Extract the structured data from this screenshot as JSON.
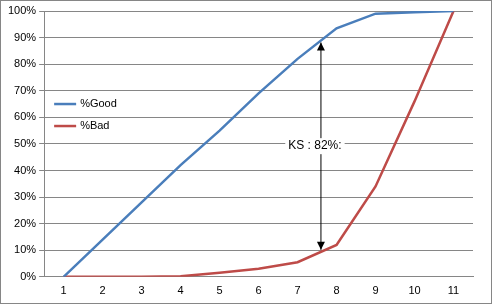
{
  "chart_data": {
    "type": "line",
    "categories": [
      "1",
      "2",
      "3",
      "4",
      "5",
      "6",
      "7",
      "8",
      "9",
      "10",
      "11"
    ],
    "series": [
      {
        "name": "%Good",
        "color": "#4a7ebb",
        "values": [
          0,
          14,
          28,
          42,
          55,
          69,
          82,
          93.5,
          99,
          99.5,
          100
        ]
      },
      {
        "name": "%Bad",
        "color": "#be4b48",
        "values": [
          0,
          0,
          0,
          0.2,
          1.5,
          3,
          5.5,
          12,
          34,
          66,
          100
        ]
      }
    ],
    "ylim": [
      0,
      100
    ],
    "yticks": [
      {
        "value": 0,
        "label": "0%"
      },
      {
        "value": 10,
        "label": "10%"
      },
      {
        "value": 20,
        "label": "20%"
      },
      {
        "value": 30,
        "label": "30%"
      },
      {
        "value": 40,
        "label": "40%"
      },
      {
        "value": 50,
        "label": "50%"
      },
      {
        "value": 60,
        "label": "60%"
      },
      {
        "value": 70,
        "label": "70%"
      },
      {
        "value": 80,
        "label": "80%"
      },
      {
        "value": 90,
        "label": "90%"
      },
      {
        "value": 100,
        "label": "100%"
      }
    ],
    "grid": true,
    "legend": "left",
    "annotations": [
      {
        "text": "KS : 82%:"
      }
    ]
  }
}
